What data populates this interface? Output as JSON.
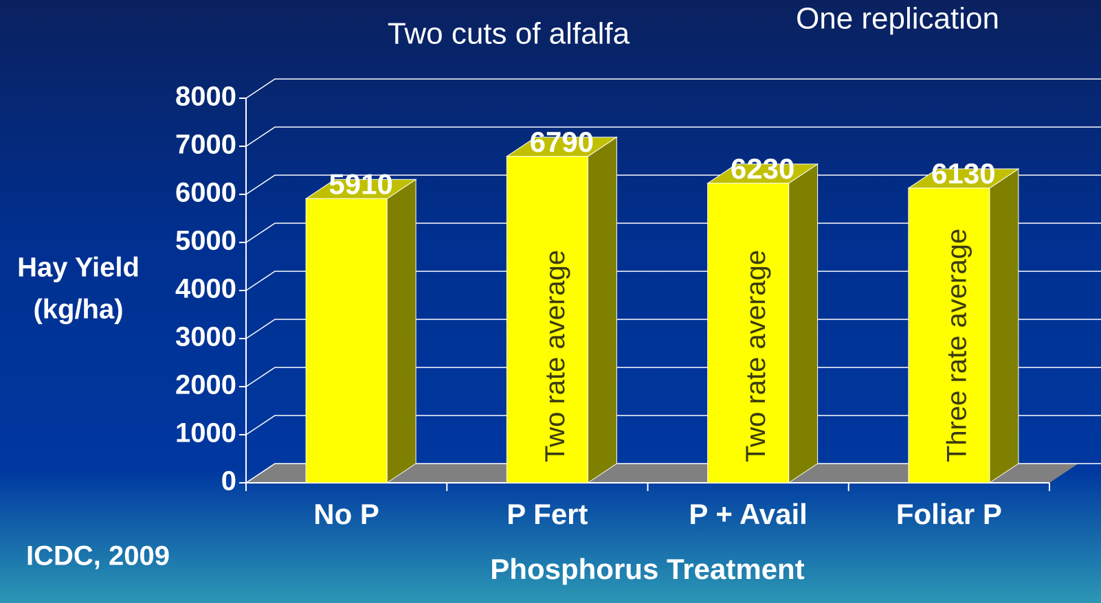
{
  "chart_data": {
    "type": "bar3d",
    "title": "Two cuts of alfalfa",
    "annotation": "One replication",
    "y_label": [
      "Hay Yield",
      "(kg/ha)"
    ],
    "x_label": "Phosphorus Treatment",
    "source": "ICDC, 2009",
    "categories": [
      "No P",
      "P Fert",
      "P + Avail",
      "Foliar P"
    ],
    "values": [
      5910,
      6790,
      6230,
      6130
    ],
    "bar_labels": [
      null,
      "Two rate average",
      "Two rate average",
      "Three rate average"
    ],
    "color": "#ffff00",
    "ylim": [
      0,
      8000
    ],
    "yticks": [
      0,
      1000,
      2000,
      3000,
      4000,
      5000,
      6000,
      7000,
      8000
    ],
    "grid": true
  }
}
